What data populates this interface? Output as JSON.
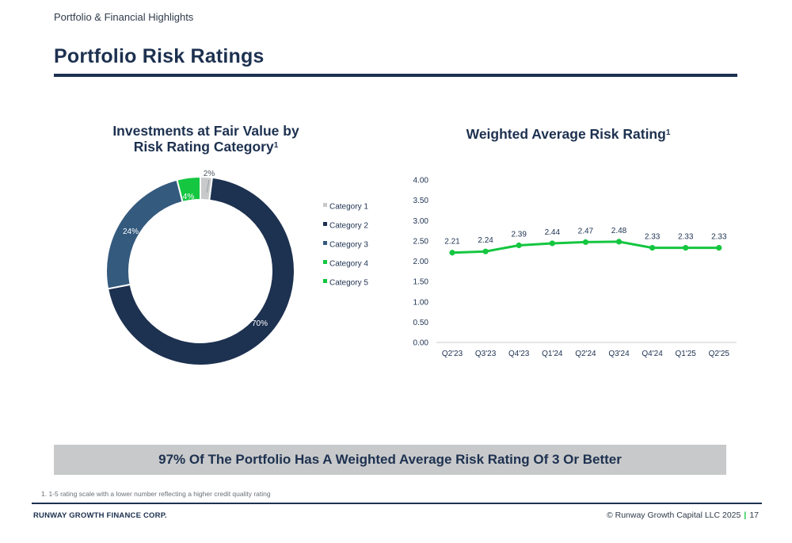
{
  "header": {
    "section": "Portfolio & Financial Highlights",
    "title": "Portfolio Risk Ratings"
  },
  "colors": {
    "navy": "#1d3150",
    "slate": "#345a7e",
    "green": "#14c640",
    "bright_green": "#0fc53c",
    "gray": "#c8c9ca"
  },
  "chart_data": [
    {
      "type": "pie",
      "variant": "donut",
      "title": "Investments at Fair Value by",
      "title_line2": "Risk Rating Category",
      "title_footnote": "1",
      "legend_position": "right",
      "series": [
        {
          "name": "Category 1",
          "value": 2,
          "label": "2%",
          "color": "#c8c9ca"
        },
        {
          "name": "Category 2",
          "value": 70,
          "label": "70%",
          "color": "#1d3150"
        },
        {
          "name": "Category 3",
          "value": 24,
          "label": "24%",
          "color": "#345a7e"
        },
        {
          "name": "Category 4",
          "value": 4,
          "label": "4%",
          "color": "#14c640"
        },
        {
          "name": "Category 5",
          "value": 0,
          "label": "",
          "color": "#0fc53c"
        }
      ]
    },
    {
      "type": "line",
      "title": "Weighted Average Risk Rating",
      "title_footnote": "1",
      "categories": [
        "Q2'23",
        "Q3'23",
        "Q4'23",
        "Q1'24",
        "Q2'24",
        "Q3'24",
        "Q4'24",
        "Q1'25",
        "Q2'25"
      ],
      "series": [
        {
          "values": [
            2.21,
            2.24,
            2.39,
            2.44,
            2.47,
            2.48,
            2.33,
            2.33,
            2.33
          ],
          "labels": [
            "2.21",
            "2.24",
            "2.39",
            "2.44",
            "2.47",
            "2.48",
            "2.33",
            "2.33",
            "2.33"
          ],
          "color": "#14c640"
        }
      ],
      "ylim": [
        0,
        4
      ],
      "yticks": [
        "0.00",
        "0.50",
        "1.00",
        "1.50",
        "2.00",
        "2.50",
        "3.00",
        "3.50",
        "4.00"
      ],
      "grid": false
    }
  ],
  "banner": "97% Of The Portfolio Has A Weighted Average Risk Rating Of 3 Or Better",
  "footnote": "1.  1-5 rating scale with a lower number reflecting a higher credit quality rating",
  "footer": {
    "company": "RUNWAY GROWTH FINANCE CORP.",
    "copyright": "© Runway Growth Capital LLC 2025",
    "separator": "|",
    "page": "17"
  }
}
